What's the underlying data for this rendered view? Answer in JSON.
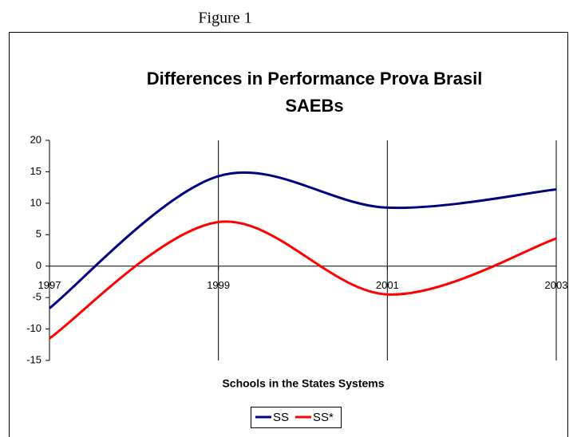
{
  "caption": "Figure 1",
  "chart_data": {
    "type": "line",
    "title": [
      "Differences in Performance Prova Brasil",
      "SAEBs"
    ],
    "x_label": "Schools in the States Systems",
    "categories": [
      "1997",
      "1999",
      "2001",
      "2003"
    ],
    "series": [
      {
        "name": "SS",
        "color": "#000080",
        "values": [
          -6.7,
          14.3,
          9.3,
          12.2
        ]
      },
      {
        "name": "SS*",
        "color": "#ff0000",
        "values": [
          -11.5,
          7.0,
          -4.5,
          4.4
        ]
      }
    ],
    "ylim": [
      -15,
      20
    ],
    "yticks": [
      -15,
      -10,
      -5,
      0,
      5,
      10,
      15,
      20
    ],
    "grid": true,
    "smooth": true,
    "legend": "bottom"
  }
}
